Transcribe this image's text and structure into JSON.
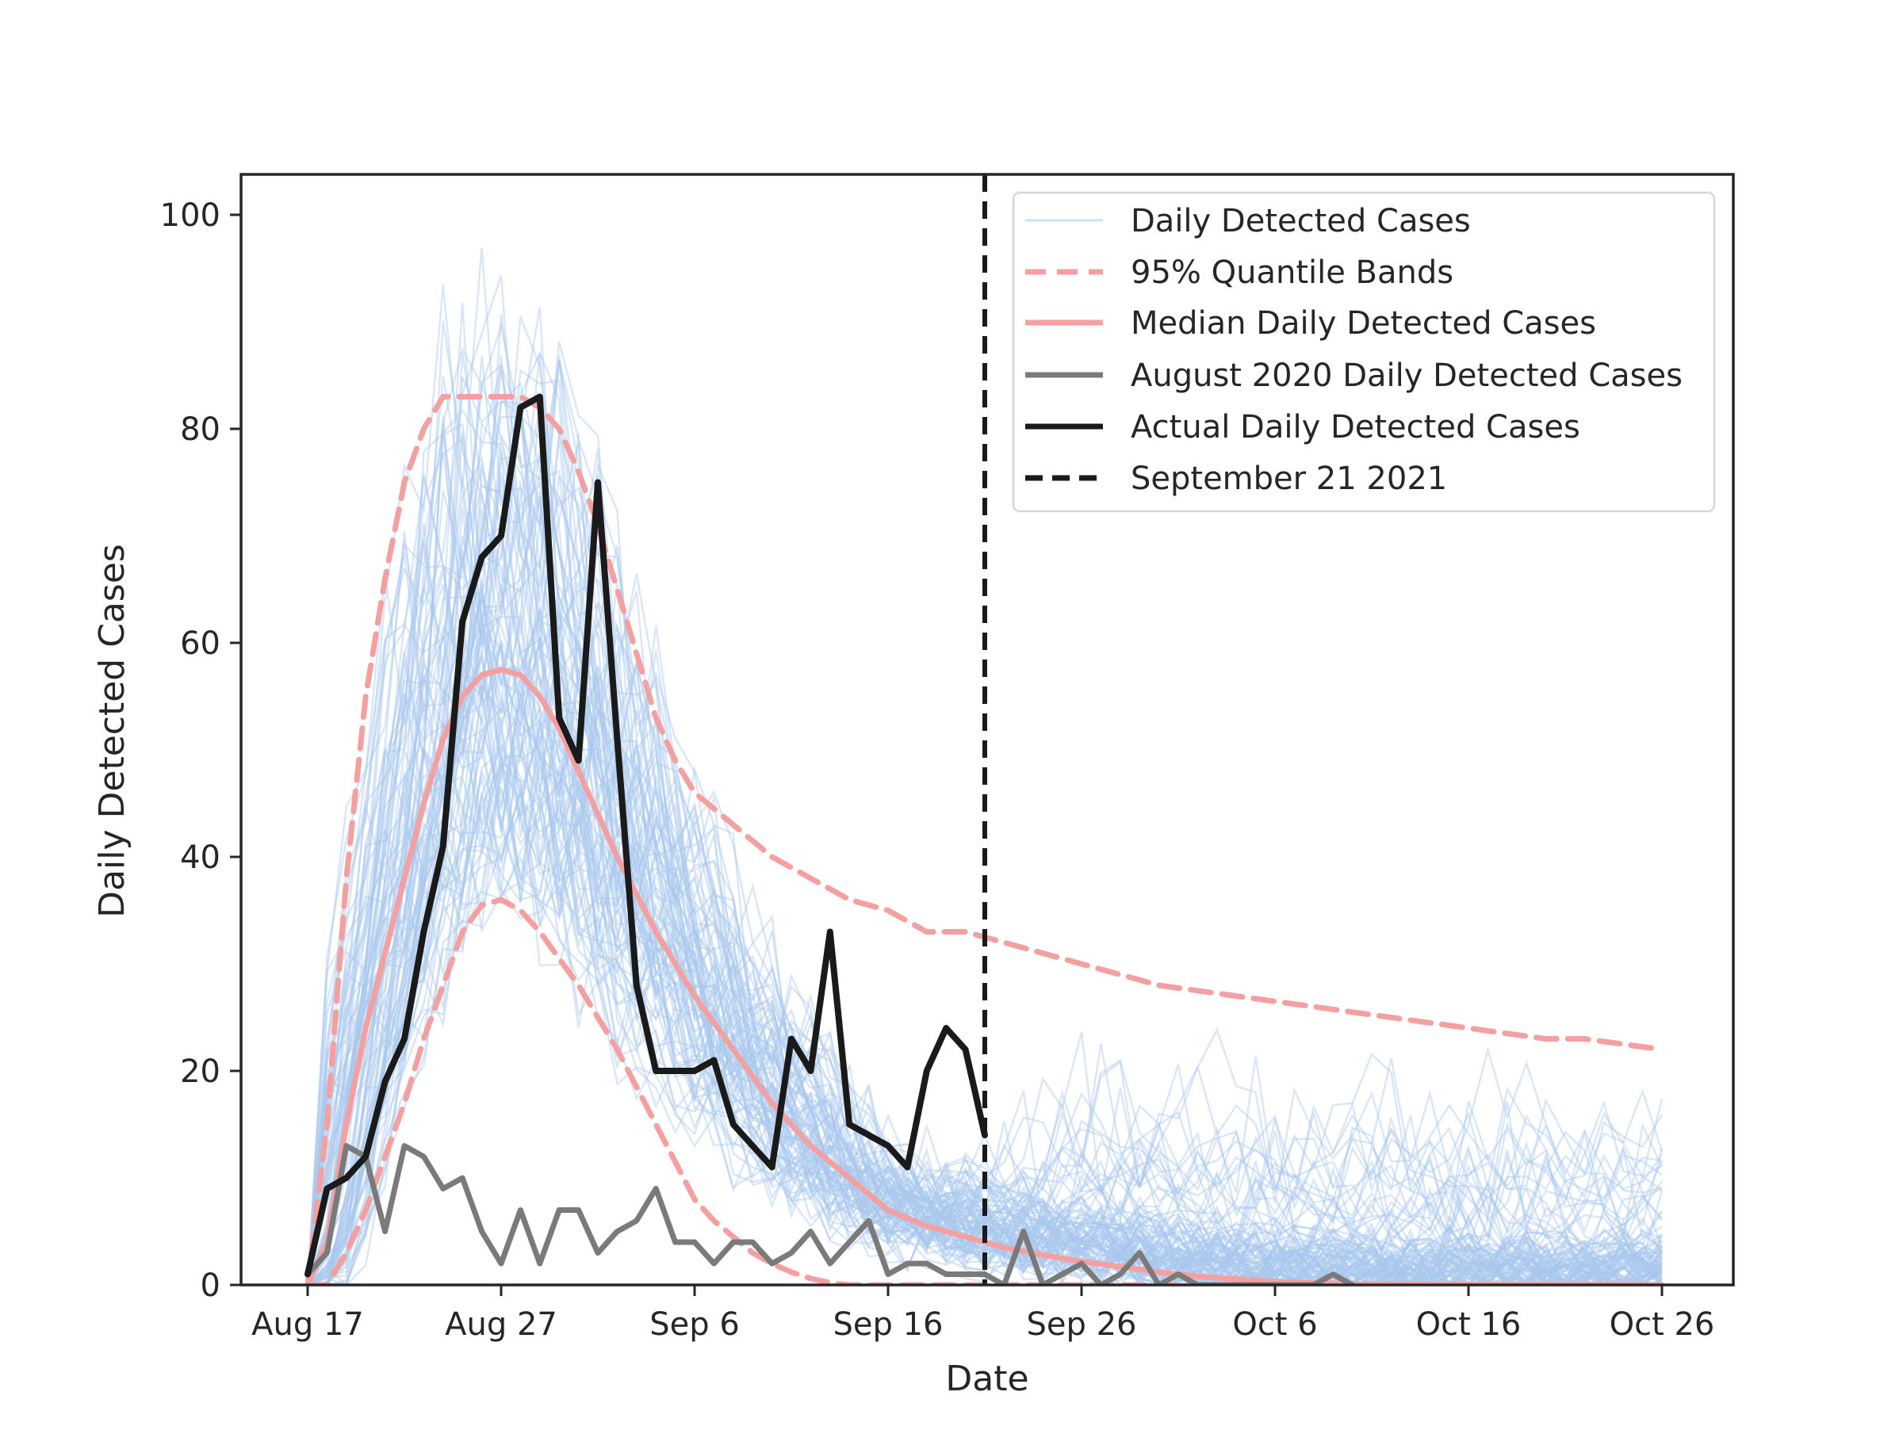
{
  "chart_data": {
    "type": "line",
    "xlabel": "Date",
    "ylabel": "Daily Detected Cases",
    "ylim": [
      0,
      104
    ],
    "xlim": [
      "2021-08-13",
      "2021-10-30"
    ],
    "x_ticks": [
      {
        "date": "2021-08-17",
        "label": "Aug 17"
      },
      {
        "date": "2021-08-27",
        "label": "Aug 27"
      },
      {
        "date": "2021-09-06",
        "label": "Sep 6"
      },
      {
        "date": "2021-09-16",
        "label": "Sep 16"
      },
      {
        "date": "2021-09-26",
        "label": "Sep 26"
      },
      {
        "date": "2021-10-06",
        "label": "Oct 6"
      },
      {
        "date": "2021-10-16",
        "label": "Oct 16"
      },
      {
        "date": "2021-10-26",
        "label": "Oct 26"
      }
    ],
    "y_ticks": [
      0,
      20,
      40,
      60,
      80,
      100
    ],
    "grid": false,
    "legend_position": "top-right",
    "legend": [
      {
        "label": "Daily Detected Cases",
        "color": "#aaccf0",
        "style": "thin-solid"
      },
      {
        "label": "95% Quantile Bands",
        "color": "#f4a0a0",
        "style": "dashed"
      },
      {
        "label": "Median Daily Detected Cases",
        "color": "#f4a0a0",
        "style": "solid"
      },
      {
        "label": "August 2020 Daily Detected Cases",
        "color": "#7a7a7a",
        "style": "solid"
      },
      {
        "label": "Actual Daily Detected Cases",
        "color": "#1a1a1a",
        "style": "solid"
      },
      {
        "label": "September 21 2021",
        "color": "#1a1a1a",
        "style": "dashed"
      }
    ],
    "vline": {
      "date": "2021-09-21",
      "label": "September 21 2021"
    },
    "start_date": "2021-08-17",
    "colors": {
      "simulated": "#a8c8ee",
      "band": "#f4a0a0",
      "median": "#f4a0a0",
      "aug2020": "#7a7a7a",
      "actual": "#1a1a1a",
      "vline": "#1a1a1a",
      "axis": "#262626"
    },
    "simulated_summary": {
      "count": 100,
      "x_start": "2021-08-17",
      "x_end": "2021-10-26"
    },
    "upper_band": {
      "x": [
        "2021-08-17",
        "2021-08-18",
        "2021-08-19",
        "2021-08-20",
        "2021-08-21",
        "2021-08-22",
        "2021-08-23",
        "2021-08-24",
        "2021-08-25",
        "2021-08-26",
        "2021-08-27",
        "2021-08-28",
        "2021-08-29",
        "2021-08-30",
        "2021-08-31",
        "2021-09-01",
        "2021-09-02",
        "2021-09-03",
        "2021-09-04",
        "2021-09-05",
        "2021-09-06",
        "2021-09-08",
        "2021-09-10",
        "2021-09-12",
        "2021-09-14",
        "2021-09-16",
        "2021-09-18",
        "2021-09-20",
        "2021-09-22",
        "2021-09-24",
        "2021-09-26",
        "2021-09-28",
        "2021-09-30",
        "2021-10-02",
        "2021-10-04",
        "2021-10-06",
        "2021-10-08",
        "2021-10-10",
        "2021-10-12",
        "2021-10-14",
        "2021-10-16",
        "2021-10-18",
        "2021-10-20",
        "2021-10-22",
        "2021-10-24",
        "2021-10-26"
      ],
      "values": [
        0,
        15,
        38,
        55,
        66,
        75,
        80,
        83,
        83,
        83,
        83,
        83,
        82,
        80,
        76,
        71,
        65,
        59,
        53,
        49,
        46,
        43,
        40,
        38,
        36,
        35,
        33,
        33,
        32,
        31,
        30,
        29,
        28,
        27.5,
        27,
        26.5,
        26,
        25.5,
        25,
        24.5,
        24,
        23.5,
        23,
        23,
        22.5,
        22
      ]
    },
    "median": {
      "x": [
        "2021-08-17",
        "2021-08-18",
        "2021-08-19",
        "2021-08-20",
        "2021-08-21",
        "2021-08-22",
        "2021-08-23",
        "2021-08-24",
        "2021-08-25",
        "2021-08-26",
        "2021-08-27",
        "2021-08-28",
        "2021-08-29",
        "2021-08-30",
        "2021-08-31",
        "2021-09-01",
        "2021-09-02",
        "2021-09-03",
        "2021-09-04",
        "2021-09-05",
        "2021-09-06",
        "2021-09-07",
        "2021-09-08",
        "2021-09-09",
        "2021-09-10",
        "2021-09-11",
        "2021-09-12",
        "2021-09-13",
        "2021-09-14",
        "2021-09-15",
        "2021-09-16",
        "2021-09-18",
        "2021-09-20",
        "2021-09-22",
        "2021-09-24",
        "2021-09-26",
        "2021-09-28",
        "2021-09-30",
        "2021-10-02",
        "2021-10-06",
        "2021-10-10",
        "2021-10-26"
      ],
      "values": [
        0,
        4,
        15,
        24,
        31,
        38,
        45,
        51,
        55,
        57,
        57.5,
        57,
        55,
        52,
        48,
        44,
        40,
        36.5,
        33,
        30,
        27,
        24.5,
        22,
        19.5,
        17,
        15,
        13,
        11.5,
        10,
        8.5,
        7,
        5.5,
        4.5,
        3.5,
        2.8,
        2.2,
        1.7,
        1.2,
        0.8,
        0.3,
        0.1,
        0
      ]
    },
    "lower_band": {
      "x": [
        "2021-08-17",
        "2021-08-18",
        "2021-08-19",
        "2021-08-20",
        "2021-08-21",
        "2021-08-22",
        "2021-08-23",
        "2021-08-24",
        "2021-08-25",
        "2021-08-26",
        "2021-08-27",
        "2021-08-28",
        "2021-08-29",
        "2021-08-30",
        "2021-08-31",
        "2021-09-01",
        "2021-09-02",
        "2021-09-03",
        "2021-09-04",
        "2021-09-05",
        "2021-09-06",
        "2021-09-07",
        "2021-09-08",
        "2021-09-09",
        "2021-09-10",
        "2021-09-11",
        "2021-09-12",
        "2021-09-13",
        "2021-09-14",
        "2021-09-16",
        "2021-10-26"
      ],
      "values": [
        0,
        0,
        3,
        7,
        12,
        17,
        23,
        28,
        33,
        35.5,
        36,
        35,
        33,
        30.5,
        28,
        25,
        22,
        18.5,
        15,
        11.5,
        8,
        6,
        4.5,
        3,
        2,
        1.2,
        0.6,
        0.2,
        0,
        0,
        0
      ]
    },
    "actual": {
      "x": [
        "2021-08-17",
        "2021-08-18",
        "2021-08-19",
        "2021-08-20",
        "2021-08-21",
        "2021-08-22",
        "2021-08-23",
        "2021-08-24",
        "2021-08-25",
        "2021-08-26",
        "2021-08-27",
        "2021-08-28",
        "2021-08-29",
        "2021-08-30",
        "2021-08-31",
        "2021-09-01",
        "2021-09-02",
        "2021-09-03",
        "2021-09-04",
        "2021-09-05",
        "2021-09-06",
        "2021-09-07",
        "2021-09-08",
        "2021-09-09",
        "2021-09-10",
        "2021-09-11",
        "2021-09-12",
        "2021-09-13",
        "2021-09-14",
        "2021-09-15",
        "2021-09-16",
        "2021-09-17",
        "2021-09-18",
        "2021-09-19",
        "2021-09-20",
        "2021-09-21"
      ],
      "values": [
        1,
        9,
        10,
        12,
        19,
        23,
        33,
        41,
        62,
        68,
        70,
        82,
        83,
        53,
        49,
        75,
        51,
        28,
        20,
        20,
        20,
        21,
        15,
        13,
        11,
        23,
        20,
        33,
        15,
        14,
        13,
        11,
        20,
        24,
        22,
        14
      ]
    },
    "aug2020": {
      "x": [
        "2021-08-17",
        "2021-08-18",
        "2021-08-19",
        "2021-08-20",
        "2021-08-21",
        "2021-08-22",
        "2021-08-23",
        "2021-08-24",
        "2021-08-25",
        "2021-08-26",
        "2021-08-27",
        "2021-08-28",
        "2021-08-29",
        "2021-08-30",
        "2021-08-31",
        "2021-09-01",
        "2021-09-02",
        "2021-09-03",
        "2021-09-04",
        "2021-09-05",
        "2021-09-06",
        "2021-09-07",
        "2021-09-08",
        "2021-09-09",
        "2021-09-10",
        "2021-09-11",
        "2021-09-12",
        "2021-09-13",
        "2021-09-14",
        "2021-09-15",
        "2021-09-16",
        "2021-09-17",
        "2021-09-18",
        "2021-09-19",
        "2021-09-20",
        "2021-09-21",
        "2021-09-22",
        "2021-09-23",
        "2021-09-24",
        "2021-09-25",
        "2021-09-26",
        "2021-09-27",
        "2021-09-28",
        "2021-09-29",
        "2021-09-30",
        "2021-10-01",
        "2021-10-02",
        "2021-10-03",
        "2021-10-04",
        "2021-10-05",
        "2021-10-06",
        "2021-10-07",
        "2021-10-08",
        "2021-10-09",
        "2021-10-10"
      ],
      "values": [
        1,
        3,
        13,
        12,
        5,
        13,
        12,
        9,
        10,
        5,
        2,
        7,
        2,
        7,
        7,
        3,
        5,
        6,
        9,
        4,
        4,
        2,
        4,
        4,
        2,
        3,
        5,
        2,
        4,
        6,
        1,
        2,
        2,
        1,
        1,
        1,
        0,
        5,
        0,
        1,
        2,
        0,
        1,
        3,
        0,
        1,
        0,
        0,
        0,
        0,
        0,
        0,
        0,
        1,
        0
      ]
    }
  }
}
